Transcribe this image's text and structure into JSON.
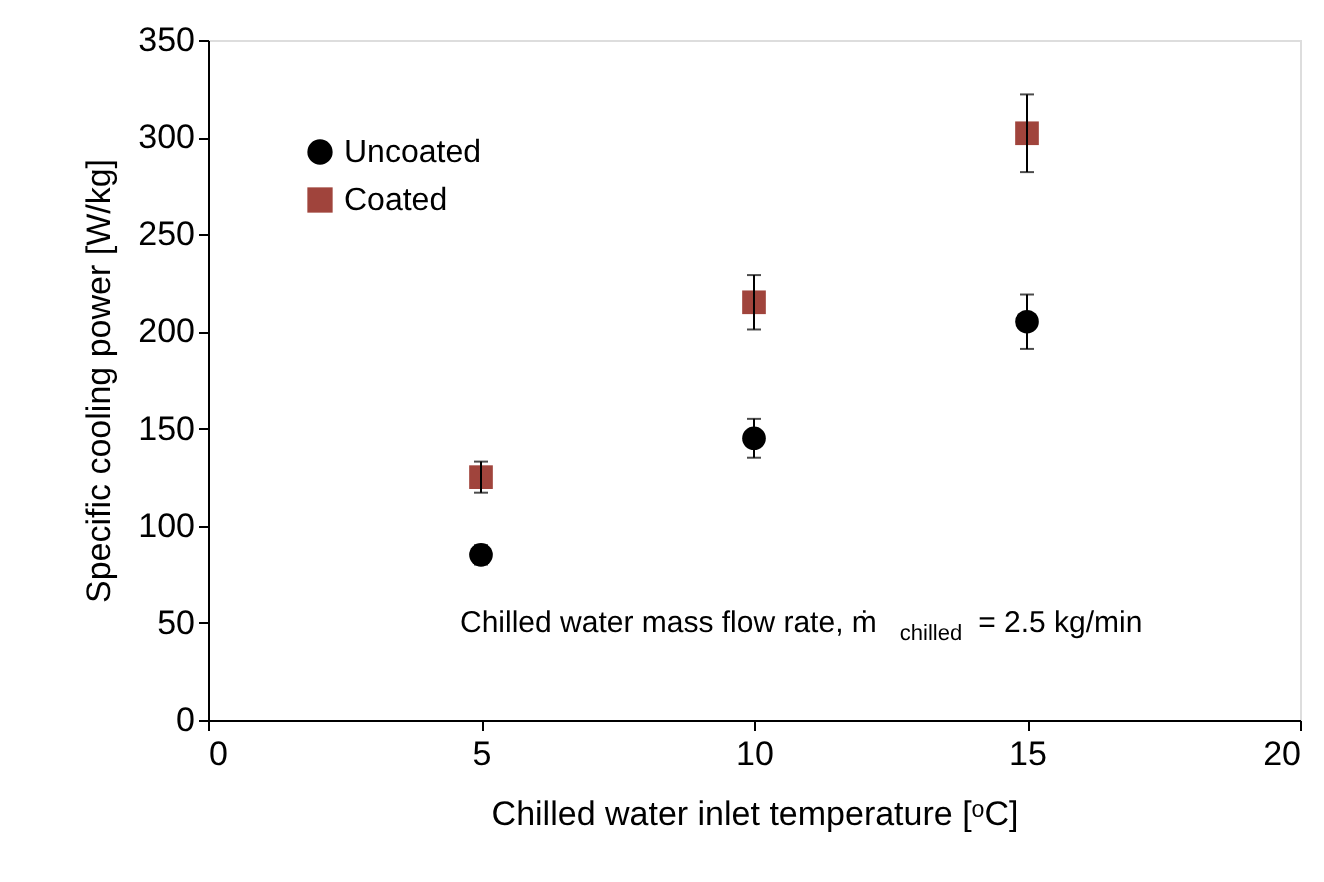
{
  "chart_data": {
    "type": "scatter",
    "xlabel": "Chilled water inlet temperature [ᵒC]",
    "ylabel": "Specific cooling power  [W/kg]",
    "x": [
      5,
      10,
      15
    ],
    "series": [
      {
        "name": "Uncoated",
        "color": "#000000",
        "marker": "circle",
        "values": [
          85,
          145,
          205
        ],
        "errors": [
          5,
          10,
          14
        ]
      },
      {
        "name": "Coated",
        "color": "#a0443c",
        "marker": "square",
        "values": [
          125,
          215,
          302
        ],
        "errors": [
          8,
          14,
          20
        ]
      }
    ],
    "xlim": [
      0,
      20
    ],
    "xticks": [
      0,
      5,
      10,
      15,
      20
    ],
    "ylim": [
      0,
      350
    ],
    "yticks": [
      0,
      50,
      100,
      150,
      200,
      250,
      300,
      350
    ],
    "grid": false,
    "legend": "top left",
    "annotations": [
      "Chilled water mass flow rate, ṁ$_{chilled}$ = 2.5 kg/min"
    ]
  }
}
